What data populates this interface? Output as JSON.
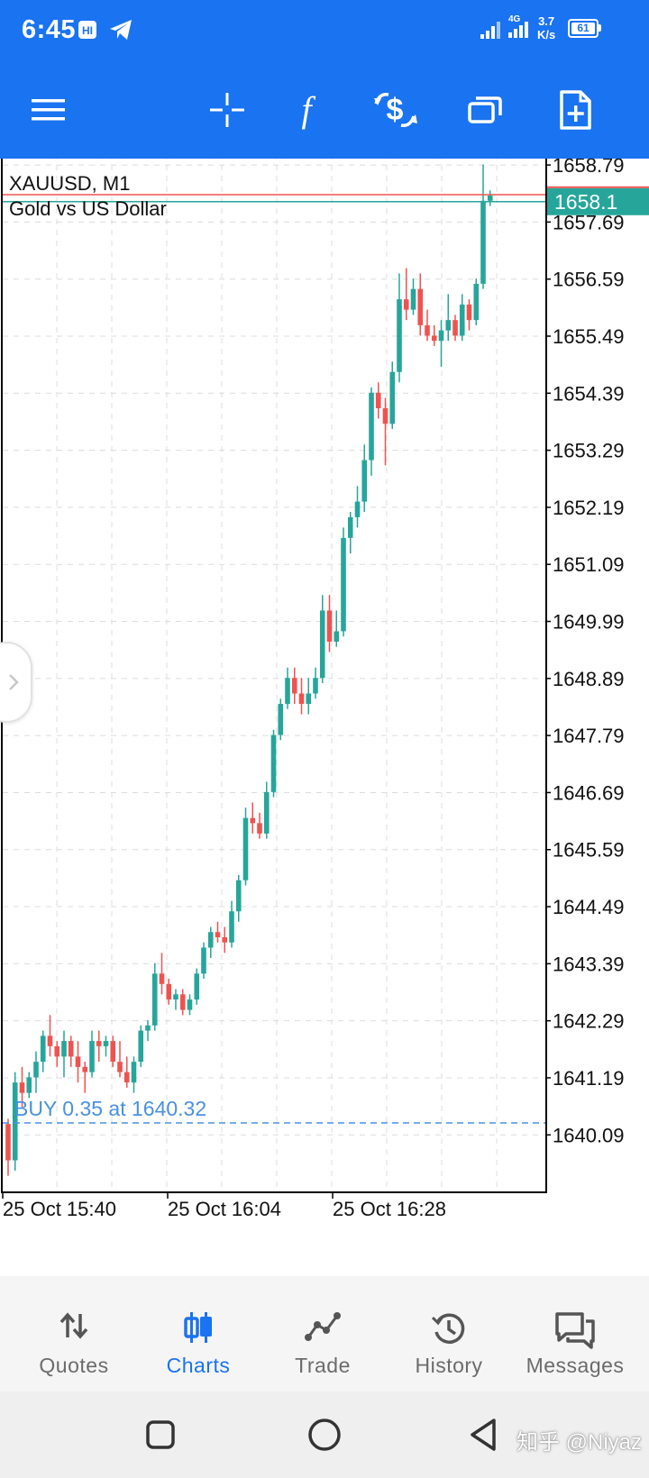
{
  "status_bar": {
    "time": "6:45",
    "network": "4G",
    "speed_value": "3.7",
    "speed_unit": "K/s",
    "battery": "61"
  },
  "toolbar": {
    "icons": [
      "menu-icon",
      "crosshair-icon",
      "indicators-icon",
      "new-order-icon",
      "windows-icon",
      "templates-icon"
    ]
  },
  "chart": {
    "symbol_line": "XAUUSD, M1",
    "description": "Gold vs US Dollar",
    "current_price": "1658.1",
    "order_line_label": "BUY 0.35 at 1640.32",
    "colors": {
      "bull": "#26a69a",
      "bear": "#ef5350",
      "order_line": "#4a90e2",
      "bid_line": "#26a69a",
      "ask_line": "#ef5350"
    }
  },
  "chart_data": {
    "type": "candlestick",
    "symbol": "XAUUSD",
    "timeframe": "M1",
    "ylim": [
      1639.0,
      1659.0
    ],
    "y_tick_labels": [
      "1658.79",
      "1657.69",
      "1656.59",
      "1655.49",
      "1654.39",
      "1653.29",
      "1652.19",
      "1651.09",
      "1649.99",
      "1648.89",
      "1647.79",
      "1646.69",
      "1645.59",
      "1644.49",
      "1643.39",
      "1642.29",
      "1641.19",
      "1640.09"
    ],
    "y_tick_values": [
      1658.79,
      1657.69,
      1656.59,
      1655.49,
      1654.39,
      1653.29,
      1652.19,
      1651.09,
      1649.99,
      1648.89,
      1647.79,
      1646.69,
      1645.59,
      1644.49,
      1643.39,
      1642.29,
      1641.19,
      1640.09
    ],
    "x_tick_labels": [
      "25 Oct 15:40",
      "25 Oct 16:04",
      "25 Oct 16:28"
    ],
    "x_tick_index": [
      0,
      24,
      48
    ],
    "grid": true,
    "order_level": 1640.32,
    "bid": 1658.1,
    "ask": 1658.2,
    "candles": [
      [
        1640.3,
        1640.4,
        1639.3,
        1639.6
      ],
      [
        1639.6,
        1641.3,
        1639.4,
        1641.1
      ],
      [
        1641.1,
        1641.4,
        1640.6,
        1640.9
      ],
      [
        1640.9,
        1641.3,
        1640.8,
        1641.2
      ],
      [
        1641.2,
        1641.7,
        1640.9,
        1641.5
      ],
      [
        1641.5,
        1642.1,
        1641.3,
        1642.0
      ],
      [
        1642.0,
        1642.4,
        1641.6,
        1641.8
      ],
      [
        1641.8,
        1641.9,
        1641.4,
        1641.6
      ],
      [
        1641.6,
        1642.1,
        1641.2,
        1641.9
      ],
      [
        1641.9,
        1642.0,
        1641.4,
        1641.6
      ],
      [
        1641.6,
        1641.9,
        1641.1,
        1641.4
      ],
      [
        1641.4,
        1641.5,
        1640.9,
        1641.3
      ],
      [
        1641.3,
        1642.1,
        1641.2,
        1641.9
      ],
      [
        1641.9,
        1642.1,
        1641.5,
        1641.8
      ],
      [
        1641.8,
        1642.0,
        1641.6,
        1641.9
      ],
      [
        1641.9,
        1642.0,
        1641.4,
        1641.5
      ],
      [
        1641.5,
        1641.9,
        1641.2,
        1641.3
      ],
      [
        1641.3,
        1641.6,
        1641.0,
        1641.1
      ],
      [
        1641.1,
        1641.6,
        1640.9,
        1641.5
      ],
      [
        1641.5,
        1642.2,
        1641.4,
        1642.1
      ],
      [
        1642.1,
        1642.3,
        1641.9,
        1642.2
      ],
      [
        1642.2,
        1643.4,
        1642.1,
        1643.2
      ],
      [
        1643.2,
        1643.6,
        1642.8,
        1643.0
      ],
      [
        1643.0,
        1643.1,
        1642.6,
        1642.7
      ],
      [
        1642.7,
        1642.9,
        1642.5,
        1642.8
      ],
      [
        1642.8,
        1642.9,
        1642.4,
        1642.5
      ],
      [
        1642.5,
        1642.8,
        1642.4,
        1642.7
      ],
      [
        1642.7,
        1643.3,
        1642.6,
        1643.2
      ],
      [
        1643.2,
        1643.8,
        1643.1,
        1643.7
      ],
      [
        1643.7,
        1644.1,
        1643.5,
        1644.0
      ],
      [
        1644.0,
        1644.2,
        1643.8,
        1643.9
      ],
      [
        1643.9,
        1644.1,
        1643.6,
        1643.8
      ],
      [
        1643.8,
        1644.6,
        1643.7,
        1644.4
      ],
      [
        1644.4,
        1645.1,
        1644.2,
        1645.0
      ],
      [
        1645.0,
        1646.4,
        1644.9,
        1646.2
      ],
      [
        1646.2,
        1646.5,
        1645.9,
        1646.1
      ],
      [
        1646.1,
        1646.3,
        1645.8,
        1645.9
      ],
      [
        1645.9,
        1646.9,
        1645.8,
        1646.7
      ],
      [
        1646.7,
        1647.9,
        1646.6,
        1647.8
      ],
      [
        1647.8,
        1648.5,
        1647.7,
        1648.4
      ],
      [
        1648.4,
        1649.1,
        1648.3,
        1648.9
      ],
      [
        1648.9,
        1649.1,
        1648.4,
        1648.6
      ],
      [
        1648.6,
        1648.9,
        1648.2,
        1648.4
      ],
      [
        1648.4,
        1648.9,
        1648.2,
        1648.6
      ],
      [
        1648.6,
        1649.1,
        1648.5,
        1648.9
      ],
      [
        1648.9,
        1650.5,
        1648.8,
        1650.2
      ],
      [
        1650.2,
        1650.5,
        1649.4,
        1649.6
      ],
      [
        1649.6,
        1650.2,
        1649.5,
        1649.8
      ],
      [
        1649.8,
        1651.8,
        1649.7,
        1651.6
      ],
      [
        1651.6,
        1652.1,
        1651.3,
        1652.0
      ],
      [
        1652.0,
        1652.6,
        1651.8,
        1652.3
      ],
      [
        1652.3,
        1653.4,
        1652.1,
        1653.1
      ],
      [
        1653.1,
        1654.5,
        1652.8,
        1654.4
      ],
      [
        1654.4,
        1654.6,
        1653.9,
        1654.1
      ],
      [
        1654.1,
        1654.3,
        1653.0,
        1653.8
      ],
      [
        1653.8,
        1655.0,
        1653.7,
        1654.8
      ],
      [
        1654.8,
        1656.7,
        1654.6,
        1656.2
      ],
      [
        1656.2,
        1656.8,
        1655.8,
        1656.0
      ],
      [
        1656.0,
        1656.6,
        1655.9,
        1656.4
      ],
      [
        1656.4,
        1656.7,
        1655.5,
        1655.7
      ],
      [
        1655.7,
        1656.0,
        1655.4,
        1655.5
      ],
      [
        1655.5,
        1655.7,
        1655.3,
        1655.4
      ],
      [
        1655.4,
        1655.8,
        1654.9,
        1655.6
      ],
      [
        1655.6,
        1656.3,
        1655.4,
        1655.8
      ],
      [
        1655.8,
        1655.9,
        1655.4,
        1655.5
      ],
      [
        1655.5,
        1656.3,
        1655.4,
        1656.1
      ],
      [
        1656.1,
        1656.2,
        1655.6,
        1655.8
      ],
      [
        1655.8,
        1656.6,
        1655.7,
        1656.5
      ],
      [
        1656.5,
        1658.8,
        1656.4,
        1658.1
      ],
      [
        1658.1,
        1658.3,
        1658.0,
        1658.2
      ]
    ]
  },
  "bottom_nav": {
    "items": [
      {
        "label": "Quotes",
        "icon": "quotes-arrows-icon",
        "active": false
      },
      {
        "label": "Charts",
        "icon": "candles-icon",
        "active": true
      },
      {
        "label": "Trade",
        "icon": "trade-line-icon",
        "active": false
      },
      {
        "label": "History",
        "icon": "history-clock-icon",
        "active": false
      },
      {
        "label": "Messages",
        "icon": "messages-icon",
        "active": false
      }
    ]
  },
  "system_nav": {
    "icons": [
      "recents-square-icon",
      "home-circle-icon",
      "back-triangle-icon"
    ]
  },
  "watermark": "知乎 @Niyaz"
}
